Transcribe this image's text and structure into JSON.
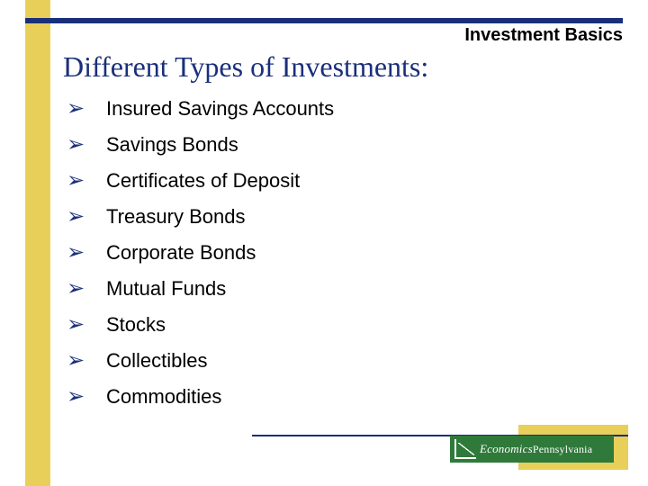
{
  "colors": {
    "accent_blue": "#1a2f7a",
    "accent_yellow": "#e8cf5a",
    "badge_green": "#2f7a3a",
    "text_black": "#000000",
    "background": "#ffffff"
  },
  "header": {
    "label": "Investment Basics"
  },
  "title": "Different Types of Investments:",
  "bullet_char": "➢",
  "items": [
    "Insured Savings Accounts",
    "Savings Bonds",
    "Certificates of Deposit",
    "Treasury Bonds",
    "Corporate Bonds",
    "Mutual Funds",
    "Stocks",
    "Collectibles",
    "Commodities"
  ],
  "footer": {
    "badge_text_italic": "Economics",
    "badge_text_plain": "Pennsylvania"
  }
}
